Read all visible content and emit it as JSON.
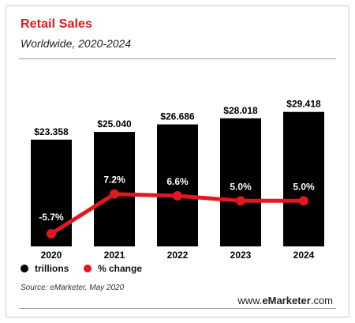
{
  "header": {
    "title": "Retail Sales",
    "subtitle": "Worldwide, 2020-2024"
  },
  "legend": {
    "bars_label": "trillions",
    "line_label": "% change"
  },
  "footer": {
    "source": "Source: eMarketer, May 2020",
    "logo_prefix": "www.",
    "logo_brand": "eMarketer",
    "logo_suffix": ".com"
  },
  "colors": {
    "bars": "#000000",
    "line": "#e3171f",
    "title": "#e3171f"
  },
  "chart_data": {
    "type": "bar",
    "categories": [
      "2020",
      "2021",
      "2022",
      "2023",
      "2024"
    ],
    "series": [
      {
        "name": "trillions",
        "type": "bar",
        "values": [
          23.358,
          25.04,
          26.686,
          28.018,
          29.418
        ],
        "labels": [
          "$23.358",
          "$25.040",
          "$26.686",
          "$28.018",
          "$29.418"
        ]
      },
      {
        "name": "% change",
        "type": "line",
        "values": [
          -5.7,
          7.2,
          6.6,
          5.0,
          5.0
        ],
        "labels": [
          "-5.7%",
          "7.2%",
          "6.6%",
          "5.0%",
          "5.0%"
        ]
      }
    ],
    "title": "Retail Sales",
    "subtitle": "Worldwide, 2020-2024",
    "legend_position": "bottom-left",
    "grid": false
  }
}
